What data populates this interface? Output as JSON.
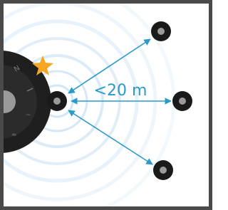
{
  "diagram": {
    "distance_label": "<20 m"
  }
}
